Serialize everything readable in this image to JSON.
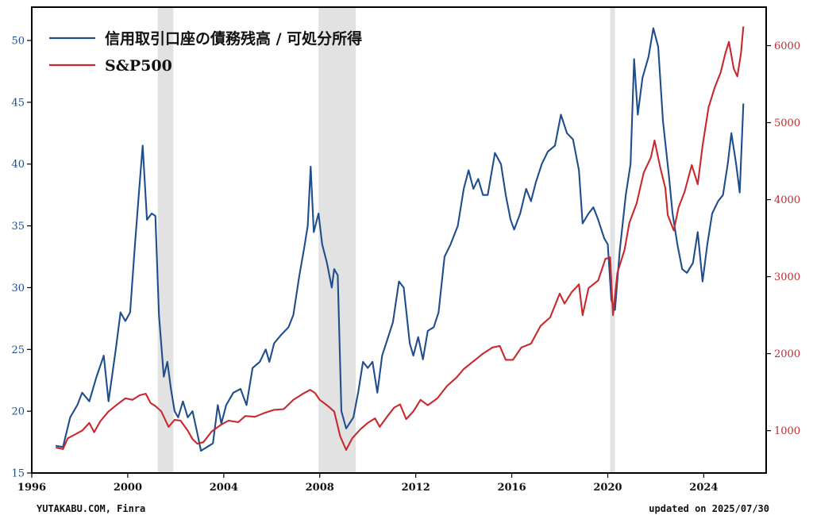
{
  "chart_data": {
    "type": "line",
    "x_axis": {
      "ticks": [
        "1996",
        "2000",
        "2004",
        "2008",
        "2012",
        "2016",
        "2020",
        "2024"
      ],
      "range": [
        1996,
        2026.6
      ]
    },
    "y_left": {
      "ticks": [
        "15",
        "20",
        "25",
        "30",
        "35",
        "40",
        "45",
        "50"
      ],
      "range": [
        15,
        52.7
      ],
      "color": "#1f4e8c"
    },
    "y_right": {
      "ticks": [
        "1000",
        "2000",
        "3000",
        "4000",
        "5000",
        "6000"
      ],
      "range": [
        450,
        6500
      ],
      "color": "#c8282e"
    },
    "recessions": [
      [
        2001.25,
        2001.9
      ],
      [
        2007.95,
        2009.5
      ],
      [
        2020.1,
        2020.3
      ]
    ],
    "grid": false,
    "legend_position": "top-left",
    "series": [
      {
        "name": "信用取引口座の債務残高 / 可処分所得",
        "axis": "left",
        "color": "#1f4e8c",
        "points": [
          [
            1997.0,
            17.2
          ],
          [
            1997.3,
            17.1
          ],
          [
            1997.6,
            19.5
          ],
          [
            1997.9,
            20.5
          ],
          [
            1998.1,
            21.5
          ],
          [
            1998.4,
            20.8
          ],
          [
            1998.7,
            22.8
          ],
          [
            1999.0,
            24.5
          ],
          [
            1999.2,
            20.8
          ],
          [
            1999.5,
            25
          ],
          [
            1999.7,
            28
          ],
          [
            1999.9,
            27.3
          ],
          [
            2000.1,
            28
          ],
          [
            2000.3,
            33.5
          ],
          [
            2000.5,
            38.5
          ],
          [
            2000.62,
            41.5
          ],
          [
            2000.8,
            35.5
          ],
          [
            2001.0,
            36
          ],
          [
            2001.15,
            35.8
          ],
          [
            2001.3,
            27.8
          ],
          [
            2001.5,
            22.8
          ],
          [
            2001.65,
            24
          ],
          [
            2001.8,
            21.8
          ],
          [
            2001.95,
            20
          ],
          [
            2002.1,
            19.5
          ],
          [
            2002.3,
            20.8
          ],
          [
            2002.5,
            19.5
          ],
          [
            2002.7,
            20
          ],
          [
            2002.9,
            18.2
          ],
          [
            2003.05,
            16.8
          ],
          [
            2003.3,
            17.1
          ],
          [
            2003.55,
            17.4
          ],
          [
            2003.75,
            20.5
          ],
          [
            2003.9,
            19
          ],
          [
            2004.1,
            20.5
          ],
          [
            2004.4,
            21.5
          ],
          [
            2004.7,
            21.8
          ],
          [
            2004.95,
            20.5
          ],
          [
            2005.2,
            23.5
          ],
          [
            2005.5,
            24
          ],
          [
            2005.75,
            25
          ],
          [
            2005.9,
            24
          ],
          [
            2006.1,
            25.5
          ],
          [
            2006.4,
            26.2
          ],
          [
            2006.7,
            26.8
          ],
          [
            2006.9,
            27.8
          ],
          [
            2007.15,
            31
          ],
          [
            2007.35,
            33.2
          ],
          [
            2007.5,
            35
          ],
          [
            2007.62,
            39.8
          ],
          [
            2007.75,
            34.5
          ],
          [
            2007.95,
            36
          ],
          [
            2008.1,
            33.5
          ],
          [
            2008.3,
            32
          ],
          [
            2008.5,
            30
          ],
          [
            2008.6,
            31.5
          ],
          [
            2008.75,
            31
          ],
          [
            2008.9,
            20
          ],
          [
            2009.1,
            18.6
          ],
          [
            2009.4,
            19.5
          ],
          [
            2009.6,
            21.5
          ],
          [
            2009.8,
            24
          ],
          [
            2010.0,
            23.5
          ],
          [
            2010.2,
            24
          ],
          [
            2010.4,
            21.5
          ],
          [
            2010.6,
            24.5
          ],
          [
            2010.85,
            26
          ],
          [
            2011.05,
            27.2
          ],
          [
            2011.3,
            30.5
          ],
          [
            2011.5,
            30
          ],
          [
            2011.75,
            25.5
          ],
          [
            2011.9,
            24.5
          ],
          [
            2012.1,
            26
          ],
          [
            2012.3,
            24.2
          ],
          [
            2012.5,
            26.5
          ],
          [
            2012.75,
            26.8
          ],
          [
            2012.95,
            28
          ],
          [
            2013.2,
            32.5
          ],
          [
            2013.45,
            33.5
          ],
          [
            2013.75,
            35
          ],
          [
            2014.0,
            38
          ],
          [
            2014.2,
            39.5
          ],
          [
            2014.4,
            38
          ],
          [
            2014.6,
            38.8
          ],
          [
            2014.8,
            37.5
          ],
          [
            2015.0,
            37.5
          ],
          [
            2015.3,
            40.9
          ],
          [
            2015.55,
            40
          ],
          [
            2015.75,
            37.5
          ],
          [
            2015.95,
            35.5
          ],
          [
            2016.1,
            34.7
          ],
          [
            2016.35,
            36
          ],
          [
            2016.6,
            38
          ],
          [
            2016.8,
            37
          ],
          [
            2017.0,
            38.5
          ],
          [
            2017.25,
            40
          ],
          [
            2017.5,
            41
          ],
          [
            2017.8,
            41.5
          ],
          [
            2018.05,
            44
          ],
          [
            2018.3,
            42.5
          ],
          [
            2018.55,
            42
          ],
          [
            2018.8,
            39.5
          ],
          [
            2018.95,
            35.2
          ],
          [
            2019.2,
            36
          ],
          [
            2019.4,
            36.5
          ],
          [
            2019.6,
            35.5
          ],
          [
            2019.85,
            34
          ],
          [
            2020.0,
            33.5
          ],
          [
            2020.15,
            29
          ],
          [
            2020.3,
            28.2
          ],
          [
            2020.5,
            33
          ],
          [
            2020.75,
            37.5
          ],
          [
            2020.95,
            40
          ],
          [
            2021.1,
            48.5
          ],
          [
            2021.25,
            44
          ],
          [
            2021.45,
            47
          ],
          [
            2021.7,
            48.7
          ],
          [
            2021.9,
            51
          ],
          [
            2022.1,
            49.5
          ],
          [
            2022.3,
            43.5
          ],
          [
            2022.55,
            39
          ],
          [
            2022.7,
            36
          ],
          [
            2022.9,
            33.5
          ],
          [
            2023.1,
            31.5
          ],
          [
            2023.3,
            31.2
          ],
          [
            2023.55,
            32
          ],
          [
            2023.75,
            34.5
          ],
          [
            2023.95,
            30.5
          ],
          [
            2024.15,
            33.5
          ],
          [
            2024.35,
            36
          ],
          [
            2024.6,
            37
          ],
          [
            2024.8,
            37.5
          ],
          [
            2025.0,
            40
          ],
          [
            2025.15,
            42.5
          ],
          [
            2025.35,
            40
          ],
          [
            2025.5,
            37.7
          ],
          [
            2025.65,
            44.9
          ]
        ]
      },
      {
        "name": "S&P500",
        "axis": "right",
        "color": "#c8282e",
        "points": [
          [
            1997.0,
            780
          ],
          [
            1997.3,
            760
          ],
          [
            1997.5,
            900
          ],
          [
            1997.8,
            950
          ],
          [
            1998.1,
            1000
          ],
          [
            1998.4,
            1100
          ],
          [
            1998.6,
            980
          ],
          [
            1998.85,
            1120
          ],
          [
            1999.2,
            1250
          ],
          [
            1999.6,
            1350
          ],
          [
            1999.9,
            1420
          ],
          [
            2000.2,
            1400
          ],
          [
            2000.5,
            1460
          ],
          [
            2000.75,
            1480
          ],
          [
            2000.95,
            1360
          ],
          [
            2001.15,
            1320
          ],
          [
            2001.4,
            1250
          ],
          [
            2001.7,
            1050
          ],
          [
            2001.95,
            1140
          ],
          [
            2002.2,
            1130
          ],
          [
            2002.5,
            1000
          ],
          [
            2002.7,
            890
          ],
          [
            2002.9,
            830
          ],
          [
            2003.15,
            850
          ],
          [
            2003.5,
            990
          ],
          [
            2003.9,
            1080
          ],
          [
            2004.2,
            1130
          ],
          [
            2004.6,
            1110
          ],
          [
            2004.9,
            1190
          ],
          [
            2005.3,
            1180
          ],
          [
            2005.7,
            1230
          ],
          [
            2006.1,
            1270
          ],
          [
            2006.5,
            1280
          ],
          [
            2006.9,
            1400
          ],
          [
            2007.3,
            1480
          ],
          [
            2007.6,
            1530
          ],
          [
            2007.8,
            1490
          ],
          [
            2008.0,
            1400
          ],
          [
            2008.3,
            1330
          ],
          [
            2008.6,
            1250
          ],
          [
            2008.85,
            930
          ],
          [
            2009.1,
            750
          ],
          [
            2009.35,
            900
          ],
          [
            2009.7,
            1020
          ],
          [
            2010.0,
            1100
          ],
          [
            2010.3,
            1160
          ],
          [
            2010.5,
            1050
          ],
          [
            2010.8,
            1180
          ],
          [
            2011.1,
            1300
          ],
          [
            2011.35,
            1340
          ],
          [
            2011.6,
            1150
          ],
          [
            2011.9,
            1250
          ],
          [
            2012.2,
            1400
          ],
          [
            2012.5,
            1330
          ],
          [
            2012.9,
            1420
          ],
          [
            2013.3,
            1580
          ],
          [
            2013.7,
            1690
          ],
          [
            2014.0,
            1800
          ],
          [
            2014.4,
            1900
          ],
          [
            2014.8,
            2000
          ],
          [
            2015.2,
            2080
          ],
          [
            2015.5,
            2100
          ],
          [
            2015.75,
            1920
          ],
          [
            2016.05,
            1920
          ],
          [
            2016.4,
            2080
          ],
          [
            2016.8,
            2130
          ],
          [
            2017.2,
            2360
          ],
          [
            2017.6,
            2470
          ],
          [
            2018.0,
            2780
          ],
          [
            2018.2,
            2650
          ],
          [
            2018.5,
            2800
          ],
          [
            2018.8,
            2900
          ],
          [
            2018.95,
            2500
          ],
          [
            2019.2,
            2850
          ],
          [
            2019.6,
            2950
          ],
          [
            2019.9,
            3230
          ],
          [
            2020.1,
            3250
          ],
          [
            2020.22,
            2500
          ],
          [
            2020.4,
            3050
          ],
          [
            2020.7,
            3350
          ],
          [
            2020.9,
            3700
          ],
          [
            2021.2,
            3950
          ],
          [
            2021.5,
            4350
          ],
          [
            2021.8,
            4550
          ],
          [
            2021.95,
            4770
          ],
          [
            2022.2,
            4400
          ],
          [
            2022.4,
            4150
          ],
          [
            2022.5,
            3800
          ],
          [
            2022.75,
            3600
          ],
          [
            2022.95,
            3900
          ],
          [
            2023.2,
            4100
          ],
          [
            2023.5,
            4450
          ],
          [
            2023.75,
            4200
          ],
          [
            2023.95,
            4700
          ],
          [
            2024.2,
            5200
          ],
          [
            2024.45,
            5450
          ],
          [
            2024.7,
            5650
          ],
          [
            2024.9,
            5900
          ],
          [
            2025.05,
            6050
          ],
          [
            2025.25,
            5700
          ],
          [
            2025.4,
            5600
          ],
          [
            2025.55,
            5900
          ],
          [
            2025.65,
            6250
          ]
        ]
      }
    ]
  },
  "legend": [
    {
      "label": "信用取引口座の債務残高 / 可処分所得",
      "color": "#1f4e8c"
    },
    {
      "label": "S&P500",
      "color": "#c8282e"
    }
  ],
  "footer": {
    "source": "YUTAKABU.COM, Finra",
    "updated": "updated on 2025/07/30"
  }
}
